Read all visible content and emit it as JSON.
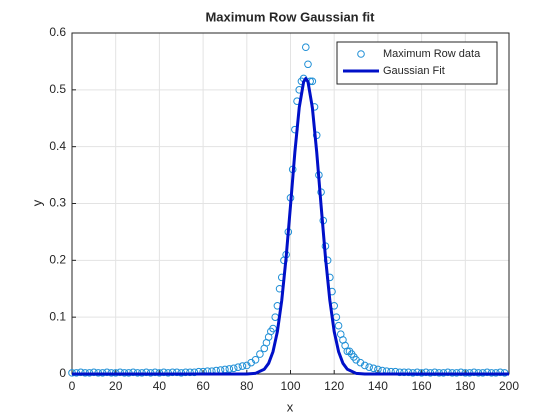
{
  "chart_data": {
    "type": "scatter",
    "title": "Maximum Row Gaussian fit",
    "xlabel": "x",
    "ylabel": "y",
    "xlim": [
      0,
      200
    ],
    "ylim": [
      0,
      0.6
    ],
    "xticks": [
      0,
      20,
      40,
      60,
      80,
      100,
      120,
      140,
      160,
      180,
      200
    ],
    "yticks": [
      0,
      0.1,
      0.2,
      0.3,
      0.4,
      0.5,
      0.6
    ],
    "grid": true,
    "legend": "northeast",
    "series": [
      {
        "name": "Maximum Row data",
        "type": "scatter",
        "color": "#1f8fd6",
        "x": [
          0,
          2,
          4,
          6,
          8,
          10,
          12,
          14,
          16,
          18,
          20,
          22,
          24,
          26,
          28,
          30,
          32,
          34,
          36,
          38,
          40,
          42,
          44,
          46,
          48,
          50,
          52,
          54,
          56,
          58,
          60,
          62,
          64,
          66,
          68,
          70,
          72,
          74,
          76,
          78,
          80,
          82,
          84,
          86,
          88,
          89,
          90,
          91,
          92,
          93,
          94,
          95,
          96,
          97,
          98,
          99,
          100,
          101,
          102,
          103,
          104,
          105,
          106,
          107,
          108,
          109,
          110,
          111,
          112,
          113,
          114,
          115,
          116,
          117,
          118,
          119,
          120,
          121,
          122,
          123,
          124,
          125,
          126,
          127,
          128,
          129,
          130,
          132,
          134,
          136,
          138,
          140,
          142,
          144,
          146,
          148,
          150,
          152,
          154,
          156,
          158,
          160,
          162,
          164,
          166,
          168,
          170,
          172,
          174,
          176,
          178,
          180,
          182,
          184,
          186,
          188,
          190,
          192,
          194,
          196,
          198
        ],
        "values": [
          0.002,
          0.002,
          0.003,
          0.002,
          0.002,
          0.003,
          0.002,
          0.002,
          0.003,
          0.002,
          0.002,
          0.003,
          0.002,
          0.002,
          0.003,
          0.002,
          0.002,
          0.003,
          0.002,
          0.003,
          0.002,
          0.003,
          0.002,
          0.003,
          0.003,
          0.002,
          0.003,
          0.003,
          0.003,
          0.004,
          0.004,
          0.005,
          0.005,
          0.006,
          0.007,
          0.008,
          0.009,
          0.01,
          0.012,
          0.014,
          0.015,
          0.02,
          0.025,
          0.035,
          0.045,
          0.055,
          0.065,
          0.075,
          0.08,
          0.1,
          0.12,
          0.15,
          0.17,
          0.2,
          0.21,
          0.25,
          0.31,
          0.36,
          0.43,
          0.48,
          0.5,
          0.515,
          0.52,
          0.575,
          0.545,
          0.515,
          0.515,
          0.47,
          0.42,
          0.35,
          0.32,
          0.27,
          0.225,
          0.2,
          0.17,
          0.145,
          0.12,
          0.1,
          0.085,
          0.07,
          0.06,
          0.05,
          0.04,
          0.04,
          0.035,
          0.03,
          0.025,
          0.02,
          0.015,
          0.012,
          0.01,
          0.008,
          0.006,
          0.005,
          0.004,
          0.004,
          0.003,
          0.003,
          0.003,
          0.002,
          0.003,
          0.002,
          0.003,
          0.002,
          0.003,
          0.002,
          0.002,
          0.003,
          0.002,
          0.002,
          0.003,
          0.002,
          0.002,
          0.003,
          0.002,
          0.002,
          0.003,
          0.002,
          0.002,
          0.003,
          0.002
        ]
      },
      {
        "name": "Gaussian Fit",
        "type": "line",
        "color": "#0010c8",
        "x": [
          0,
          60,
          70,
          80,
          84,
          88,
          90,
          92,
          94,
          96,
          98,
          100,
          102,
          104,
          106,
          107,
          108,
          110,
          112,
          114,
          116,
          118,
          120,
          122,
          124,
          126,
          130,
          134,
          150,
          200
        ],
        "values": [
          0,
          0,
          0,
          0.0001,
          0.0012,
          0.0083,
          0.0188,
          0.0394,
          0.0747,
          0.1297,
          0.2052,
          0.2963,
          0.3903,
          0.4689,
          0.5141,
          0.52,
          0.5141,
          0.4689,
          0.3903,
          0.2963,
          0.2052,
          0.1297,
          0.0747,
          0.0394,
          0.0188,
          0.0083,
          0.0012,
          0.0001,
          0,
          0
        ]
      }
    ]
  }
}
